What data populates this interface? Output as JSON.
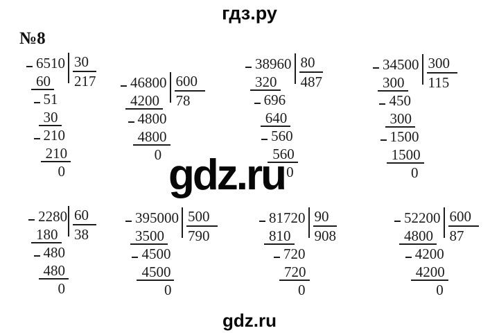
{
  "watermarks": {
    "top": "гдз.ру",
    "center": "gdz.ru",
    "bottom": "gdz.ru"
  },
  "problem_label": "№8",
  "divisions": [
    {
      "dividend": "6510",
      "divisor": "30",
      "quotient": "217",
      "rows": [
        {
          "v": "6510",
          "minus": true,
          "ind": 0
        },
        {
          "v": "60",
          "u": true,
          "ind": 0
        },
        {
          "v": "51",
          "minus": true,
          "ind": 1
        },
        {
          "v": "30",
          "u": true,
          "ind": 1
        },
        {
          "v": "210",
          "minus": true,
          "ind": 1
        },
        {
          "v": "210",
          "u": true,
          "ind": 1.3
        },
        {
          "v": "0",
          "ind": 3
        }
      ]
    },
    {
      "dividend": "46800",
      "divisor": "600",
      "quotient": "78",
      "rows": [
        {
          "v": "46800",
          "minus": true,
          "ind": 0
        },
        {
          "v": "4200",
          "u": true,
          "ind": 0
        },
        {
          "v": "4800",
          "minus": true,
          "ind": 1
        },
        {
          "v": "4800",
          "u": true,
          "ind": 1
        },
        {
          "v": "0",
          "ind": 3.3
        }
      ]
    },
    {
      "dividend": "38960",
      "divisor": "80",
      "quotient": "487",
      "rows": [
        {
          "v": "38960",
          "minus": true,
          "ind": 0
        },
        {
          "v": "320",
          "u": true,
          "ind": 0
        },
        {
          "v": "696",
          "minus": true,
          "ind": 1.2
        },
        {
          "v": "640",
          "u": true,
          "ind": 1.4
        },
        {
          "v": "560",
          "minus": true,
          "ind": 2.2
        },
        {
          "v": "560",
          "u": true,
          "ind": 2.4
        },
        {
          "v": "0",
          "ind": 4.3
        }
      ]
    },
    {
      "dividend": "34500",
      "divisor": "300",
      "quotient": "115",
      "rows": [
        {
          "v": "34500",
          "minus": true,
          "ind": 0
        },
        {
          "v": "300",
          "u": true,
          "ind": 0
        },
        {
          "v": "450",
          "minus": true,
          "ind": 0.9
        },
        {
          "v": "300",
          "u": true,
          "ind": 1
        },
        {
          "v": "1500",
          "minus": true,
          "ind": 1
        },
        {
          "v": "1500",
          "u": true,
          "ind": 1.2
        },
        {
          "v": "0",
          "ind": 3.9
        }
      ]
    },
    {
      "dividend": "2280",
      "divisor": "60",
      "quotient": "38",
      "rows": [
        {
          "v": "2280",
          "minus": true,
          "ind": 0.3
        },
        {
          "v": "180",
          "u": true,
          "ind": 0
        },
        {
          "v": "480",
          "minus": true,
          "ind": 1
        },
        {
          "v": "480",
          "u": true,
          "ind": 1
        },
        {
          "v": "0",
          "ind": 3
        }
      ]
    },
    {
      "dividend": "395000",
      "divisor": "500",
      "quotient": "790",
      "rows": [
        {
          "v": "395000",
          "minus": true,
          "ind": 0
        },
        {
          "v": "3500",
          "u": true,
          "ind": 0
        },
        {
          "v": "4500",
          "minus": true,
          "ind": 0.9
        },
        {
          "v": "4500",
          "u": true,
          "ind": 0.9
        },
        {
          "v": "0",
          "ind": 4
        }
      ]
    },
    {
      "dividend": "81720",
      "divisor": "90",
      "quotient": "908",
      "rows": [
        {
          "v": "81720",
          "minus": true,
          "ind": 0
        },
        {
          "v": "810",
          "u": true,
          "ind": 0
        },
        {
          "v": "720",
          "minus": true,
          "ind": 2
        },
        {
          "v": "720",
          "u": true,
          "ind": 2.1
        },
        {
          "v": "0",
          "ind": 4
        }
      ]
    },
    {
      "dividend": "52200",
      "divisor": "600",
      "quotient": "87",
      "rows": [
        {
          "v": "52200",
          "minus": true,
          "ind": 0
        },
        {
          "v": "4800",
          "u": true,
          "ind": 0
        },
        {
          "v": "4200",
          "minus": true,
          "ind": 1.5
        },
        {
          "v": "4200",
          "u": true,
          "ind": 1.6
        },
        {
          "v": "0",
          "ind": 4.4
        }
      ]
    }
  ]
}
